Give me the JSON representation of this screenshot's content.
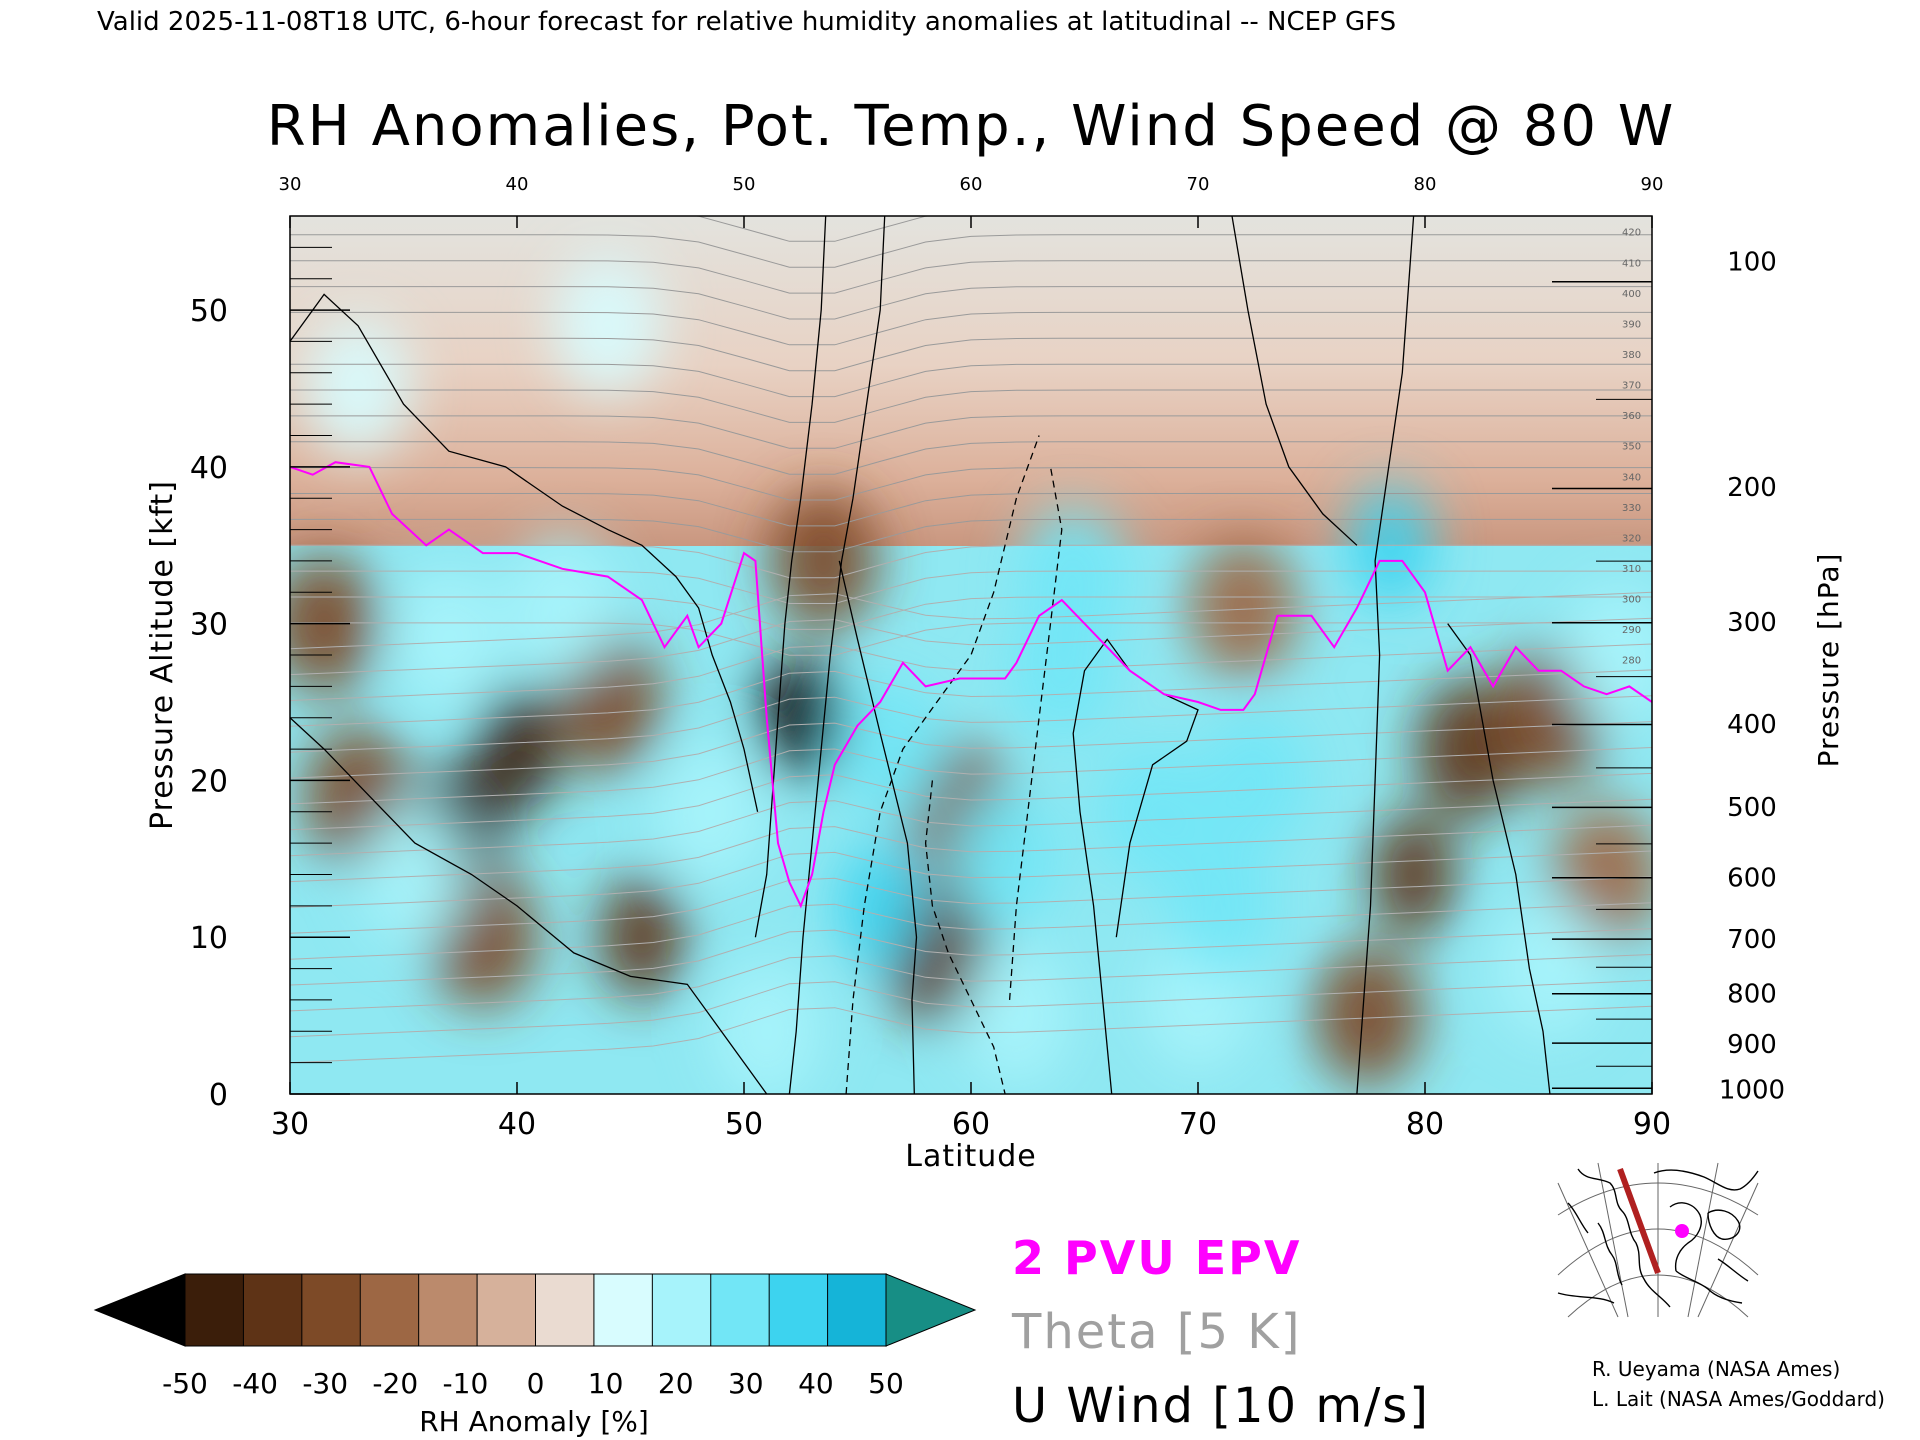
{
  "header": {
    "valid_line": "Valid 2025-11-08T18 UTC, 6-hour forecast for relative humidity anomalies at latitudinal -- NCEP GFS"
  },
  "chart_data": {
    "type": "heatmap",
    "title": "RH Anomalies, Pot. Temp., Wind Speed @ 80 W",
    "xlabel": "Latitude",
    "ylabel": "Pressure Altitude [kft]",
    "y2label": "Pressure [hPa]",
    "xlim": [
      30,
      90
    ],
    "ylim": [
      0,
      56
    ],
    "x_ticks": [
      30,
      40,
      50,
      60,
      70,
      80,
      90
    ],
    "x_tick_labels": [
      "30",
      "40",
      "50",
      "60",
      "70",
      "80",
      "90"
    ],
    "y_ticks": [
      0,
      10,
      20,
      30,
      40,
      50
    ],
    "y_tick_labels": [
      "0",
      "10",
      "20",
      "30",
      "40",
      "50"
    ],
    "pressure_axis": [
      {
        "hpa": 100,
        "kft": 53.1,
        "label": "100"
      },
      {
        "hpa": 200,
        "kft": 38.7,
        "label": "200"
      },
      {
        "hpa": 300,
        "kft": 30.1,
        "label": "300"
      },
      {
        "hpa": 400,
        "kft": 23.6,
        "label": "400"
      },
      {
        "hpa": 500,
        "kft": 18.3,
        "label": "500"
      },
      {
        "hpa": 600,
        "kft": 13.8,
        "label": "600"
      },
      {
        "hpa": 700,
        "kft": 9.9,
        "label": "700"
      },
      {
        "hpa": 800,
        "kft": 6.4,
        "label": "800"
      },
      {
        "hpa": 900,
        "kft": 3.2,
        "label": "900"
      },
      {
        "hpa": 1000,
        "kft": 0.3,
        "label": "1000"
      }
    ],
    "colorbar": {
      "label": "RH Anomaly [%]",
      "tick_labels": [
        "-50",
        "-40",
        "-30",
        "-20",
        "-10",
        "0",
        "10",
        "20",
        "30",
        "40",
        "50"
      ],
      "colors": [
        "#3b1e0a",
        "#5e3316",
        "#7d4a27",
        "#9d6744",
        "#bb8a6c",
        "#d6b19b",
        "#eadbd1",
        "#d8fcfe",
        "#a7f3fb",
        "#72e6f6",
        "#3dd3ef",
        "#15b4d8",
        "#0a8faa"
      ],
      "under_color": "#000000",
      "over_color": "#178e85"
    },
    "grid": false,
    "rh_anomaly_blobs": [
      {
        "lat": 31.5,
        "kft": 30,
        "value": -25
      },
      {
        "lat": 33,
        "kft": 19,
        "value": -30
      },
      {
        "lat": 37.5,
        "kft": 17,
        "value": -45
      },
      {
        "lat": 40,
        "kft": 22,
        "value": -45
      },
      {
        "lat": 38.5,
        "kft": 10,
        "value": -30
      },
      {
        "lat": 45.5,
        "kft": 10,
        "value": -40
      },
      {
        "lat": 44,
        "kft": 25,
        "value": -30
      },
      {
        "lat": 52.5,
        "kft": 24,
        "value": -50
      },
      {
        "lat": 53.5,
        "kft": 34,
        "value": -30
      },
      {
        "lat": 58.5,
        "kft": 9,
        "value": -35
      },
      {
        "lat": 59.5,
        "kft": 18,
        "value": -30
      },
      {
        "lat": 79.5,
        "kft": 14,
        "value": -40
      },
      {
        "lat": 82,
        "kft": 22,
        "value": -35
      },
      {
        "lat": 77.5,
        "kft": 5,
        "value": -30
      },
      {
        "lat": 85.5,
        "kft": 24,
        "value": -25
      },
      {
        "lat": 88,
        "kft": 14,
        "value": -15
      },
      {
        "lat": 72,
        "kft": 31,
        "value": -15
      },
      {
        "lat": 37,
        "kft": 29,
        "value": 25
      },
      {
        "lat": 42,
        "kft": 31,
        "value": 25
      },
      {
        "lat": 35.5,
        "kft": 14,
        "value": 20
      },
      {
        "lat": 48.5,
        "kft": 18,
        "value": 25
      },
      {
        "lat": 56,
        "kft": 12,
        "value": 40
      },
      {
        "lat": 56.5,
        "kft": 22,
        "value": 35
      },
      {
        "lat": 61.5,
        "kft": 15,
        "value": 35
      },
      {
        "lat": 64,
        "kft": 27,
        "value": 30
      },
      {
        "lat": 68,
        "kft": 18,
        "value": 35
      },
      {
        "lat": 72.5,
        "kft": 20,
        "value": 30
      },
      {
        "lat": 64.5,
        "kft": 33,
        "value": 35
      },
      {
        "lat": 78.5,
        "kft": 35,
        "value": 40
      },
      {
        "lat": 85.5,
        "kft": 8,
        "value": 20
      },
      {
        "lat": 88.5,
        "kft": 28,
        "value": 20
      },
      {
        "lat": 33,
        "kft": 45,
        "value": 15
      },
      {
        "lat": 44,
        "kft": 49,
        "value": 10
      },
      {
        "lat": 51,
        "kft": 4,
        "value": 25
      },
      {
        "lat": 62,
        "kft": 5,
        "value": 25
      },
      {
        "lat": 70,
        "kft": 6,
        "value": 20
      },
      {
        "lat": 71,
        "kft": 12,
        "value": 30
      }
    ],
    "theta_contour_labels": [
      "420",
      "410",
      "400",
      "390",
      "380",
      "370",
      "360",
      "350",
      "340",
      "330",
      "320",
      "310",
      "300",
      "290",
      "280"
    ],
    "epv_2pvu_line": [
      [
        30,
        40
      ],
      [
        31,
        39.5
      ],
      [
        32,
        40.3
      ],
      [
        33.5,
        40
      ],
      [
        34.5,
        37
      ],
      [
        36,
        35
      ],
      [
        37,
        36
      ],
      [
        38.5,
        34.5
      ],
      [
        40,
        34.5
      ],
      [
        42,
        33.5
      ],
      [
        44,
        33
      ],
      [
        45.5,
        31.5
      ],
      [
        46.5,
        28.5
      ],
      [
        47.5,
        30.5
      ],
      [
        48,
        28.5
      ],
      [
        49,
        30
      ],
      [
        50,
        34.5
      ],
      [
        50.5,
        34
      ],
      [
        51,
        24
      ],
      [
        51.5,
        16
      ],
      [
        52,
        13.5
      ],
      [
        52.5,
        12
      ],
      [
        53,
        14
      ],
      [
        53.5,
        18
      ],
      [
        54,
        21
      ],
      [
        55,
        23.5
      ],
      [
        56,
        25
      ],
      [
        57,
        27.5
      ],
      [
        58,
        26
      ],
      [
        59.5,
        26.5
      ],
      [
        60.5,
        26.5
      ],
      [
        61.5,
        26.5
      ],
      [
        62,
        27.5
      ],
      [
        63,
        30.5
      ],
      [
        64,
        31.5
      ],
      [
        65,
        30
      ],
      [
        66,
        28.5
      ],
      [
        67,
        27
      ],
      [
        68.5,
        25.5
      ],
      [
        70,
        25
      ],
      [
        71,
        24.5
      ],
      [
        72,
        24.5
      ],
      [
        72.5,
        25.5
      ],
      [
        73.5,
        30.5
      ],
      [
        75,
        30.5
      ],
      [
        76,
        28.5
      ],
      [
        77,
        31
      ],
      [
        78,
        34
      ],
      [
        79,
        34
      ],
      [
        80,
        32
      ],
      [
        81,
        27
      ],
      [
        82,
        28.5
      ],
      [
        83,
        26
      ],
      [
        84,
        28.5
      ],
      [
        85,
        27
      ],
      [
        86,
        27
      ],
      [
        87,
        26
      ],
      [
        88,
        25.5
      ],
      [
        89,
        26
      ],
      [
        90,
        25
      ]
    ],
    "u_wind_levels": [
      "0",
      "10",
      "30"
    ],
    "u_wind_solid_lines": [
      [
        [
          50.5,
          10
        ],
        [
          51,
          14
        ],
        [
          51.2,
          18
        ],
        [
          51.4,
          22
        ],
        [
          51.6,
          26
        ],
        [
          51.8,
          30
        ],
        [
          52.1,
          34
        ],
        [
          52.5,
          38
        ],
        [
          53,
          44
        ],
        [
          53.4,
          50
        ],
        [
          53.6,
          56
        ]
      ],
      [
        [
          52,
          0
        ],
        [
          52.3,
          4
        ],
        [
          52.6,
          10
        ],
        [
          53,
          16
        ],
        [
          53.4,
          22
        ],
        [
          53.8,
          28
        ],
        [
          54.3,
          34
        ],
        [
          54.8,
          38
        ],
        [
          55.4,
          44
        ],
        [
          56,
          50
        ],
        [
          56.2,
          56
        ]
      ],
      [
        [
          57.5,
          0
        ],
        [
          57.4,
          6
        ],
        [
          57.6,
          10
        ],
        [
          57.2,
          16
        ],
        [
          56,
          23
        ],
        [
          55,
          29
        ],
        [
          54.2,
          34
        ]
      ],
      [
        [
          66.2,
          0
        ],
        [
          65.8,
          6
        ],
        [
          65.4,
          12
        ],
        [
          64.8,
          18
        ],
        [
          64.5,
          23
        ],
        [
          65,
          27
        ],
        [
          66,
          29
        ],
        [
          67,
          27
        ],
        [
          68.5,
          25.5
        ],
        [
          70,
          24.5
        ],
        [
          69.5,
          22.5
        ],
        [
          68,
          21
        ],
        [
          67,
          16
        ],
        [
          66.4,
          10
        ]
      ],
      [
        [
          77,
          0
        ],
        [
          77.3,
          6
        ],
        [
          77.6,
          12
        ],
        [
          77.8,
          20
        ],
        [
          78,
          28
        ],
        [
          77.8,
          34
        ],
        [
          78.4,
          40
        ],
        [
          79,
          46
        ],
        [
          79.5,
          56
        ]
      ],
      [
        [
          71.5,
          56
        ],
        [
          72.2,
          50
        ],
        [
          73,
          44
        ],
        [
          74,
          40
        ],
        [
          75.5,
          37
        ],
        [
          77,
          35
        ]
      ],
      [
        [
          85.5,
          0
        ],
        [
          85.2,
          4
        ],
        [
          84.6,
          8
        ],
        [
          84,
          14
        ],
        [
          83,
          20
        ],
        [
          82,
          28
        ],
        [
          81,
          30
        ]
      ],
      [
        [
          30,
          24
        ],
        [
          31.5,
          22
        ],
        [
          33.5,
          19
        ],
        [
          35.5,
          16
        ],
        [
          38,
          14
        ],
        [
          40,
          12
        ],
        [
          42.5,
          9
        ],
        [
          45,
          7.5
        ],
        [
          47.5,
          7
        ],
        [
          49,
          4
        ],
        [
          50,
          2
        ],
        [
          51,
          0
        ]
      ],
      [
        [
          30,
          48
        ],
        [
          31.5,
          51
        ],
        [
          33,
          49
        ],
        [
          35,
          44
        ],
        [
          37,
          41
        ],
        [
          39.5,
          40
        ],
        [
          42,
          37.5
        ],
        [
          44,
          36
        ],
        [
          45.5,
          35
        ],
        [
          47,
          33
        ],
        [
          48,
          31
        ],
        [
          48.6,
          28
        ],
        [
          49.4,
          25
        ],
        [
          50,
          22
        ],
        [
          50.6,
          18
        ]
      ]
    ],
    "u_wind_dashed_lines": [
      [
        [
          54.5,
          0
        ],
        [
          54.8,
          6
        ],
        [
          55.3,
          12
        ],
        [
          56,
          18
        ],
        [
          57,
          22
        ],
        [
          58.5,
          25
        ],
        [
          60,
          28
        ],
        [
          61,
          32
        ],
        [
          62,
          38
        ],
        [
          63,
          42
        ]
      ],
      [
        [
          58.3,
          20
        ],
        [
          58,
          16
        ],
        [
          58.3,
          12
        ],
        [
          59,
          9
        ],
        [
          60,
          6
        ],
        [
          61,
          3
        ],
        [
          61.5,
          0
        ]
      ],
      [
        [
          61.7,
          6
        ],
        [
          62,
          12
        ],
        [
          62.5,
          18
        ],
        [
          63,
          24
        ],
        [
          63.5,
          30
        ],
        [
          64,
          36
        ],
        [
          63.5,
          40
        ]
      ]
    ],
    "legend": [
      {
        "label": "2 PVU EPV",
        "color": "#ff00ff"
      },
      {
        "label": "Theta [5 K]",
        "color": "#a0a0a0"
      },
      {
        "label": "U Wind [10 m/s]",
        "color": "#000000"
      }
    ]
  },
  "inset_map": {
    "section_line": [
      [
        62,
        6
      ],
      [
        100,
        110
      ]
    ],
    "marker": [
      124,
      68
    ]
  },
  "credits": {
    "line1": "R. Ueyama (NASA Ames)",
    "line2": "L. Lait (NASA Ames/Goddard)"
  }
}
